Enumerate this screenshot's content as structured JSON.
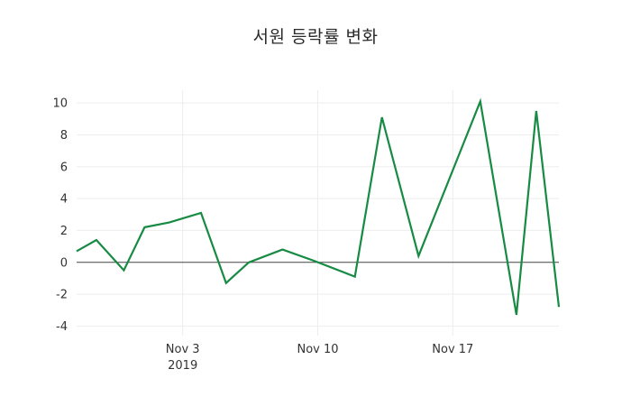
{
  "chart_data": {
    "type": "line",
    "title": "서원 등락률 변화",
    "xlabel": "",
    "ylabel": "",
    "legend": "none",
    "grid": true,
    "zero_line": true,
    "ylim": [
      -4.6,
      10.8
    ],
    "y_ticks": [
      -4,
      -2,
      0,
      2,
      4,
      6,
      8,
      10
    ],
    "x_tick_labels": [
      "Nov 3",
      "Nov 10",
      "Nov 17"
    ],
    "x_tick_positions": [
      0.22,
      0.5,
      0.78
    ],
    "x_year_label": "2019",
    "series": [
      {
        "name": "서원 등락률",
        "color": "#178a43",
        "points_fx": [
          0.0,
          0.041,
          0.098,
          0.141,
          0.192,
          0.258,
          0.31,
          0.357,
          0.427,
          0.492,
          0.577,
          0.633,
          0.709,
          0.837,
          0.912,
          0.953,
          1.0
        ],
        "points_y": [
          0.7,
          1.4,
          -0.5,
          2.2,
          2.5,
          3.1,
          -1.3,
          0.0,
          0.8,
          0.1,
          -0.9,
          9.1,
          0.4,
          10.1,
          -3.3,
          9.5,
          -2.8
        ]
      }
    ]
  },
  "colors": {
    "line": "#178a43",
    "grid": "#ededed",
    "zero_line": "#444444",
    "text": "#333333",
    "title_text": "#2a2a2a",
    "background": "#ffffff"
  }
}
